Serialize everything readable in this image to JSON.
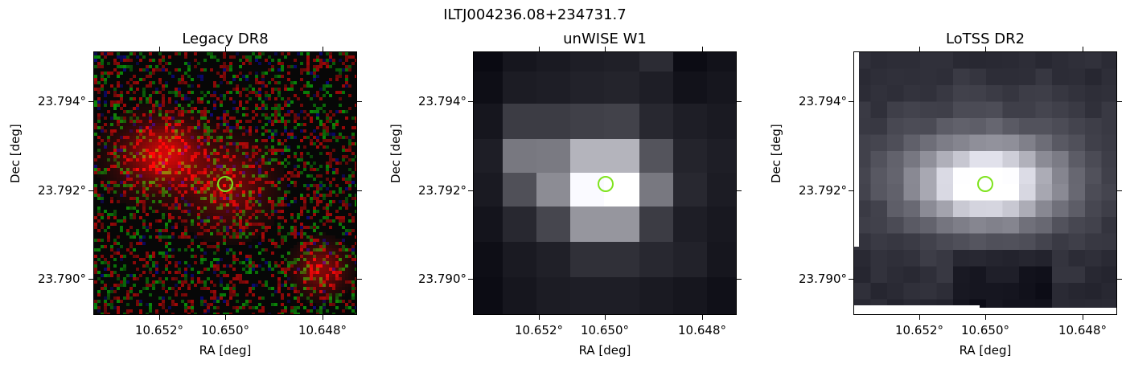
{
  "figure": {
    "title": "ILTJ004236.08+234731.7",
    "panels": [
      {
        "title": "Legacy DR8",
        "xlabel": "RA [deg]",
        "ylabel": "Dec [deg]",
        "xticks": [
          "10.652°",
          "10.650°",
          "10.648°"
        ],
        "yticks": [
          "23.794°",
          "23.792°",
          "23.790°"
        ]
      },
      {
        "title": "unWISE W1",
        "xlabel": "RA [deg]",
        "ylabel": "Dec [deg]",
        "xticks": [
          "10.652°",
          "10.650°",
          "10.648°"
        ],
        "yticks": [
          "23.794°",
          "23.792°",
          "23.790°"
        ]
      },
      {
        "title": "LoTSS DR2",
        "xlabel": "RA [deg]",
        "ylabel": "Dec [deg]",
        "xticks": [
          "10.652°",
          "10.650°",
          "10.648°"
        ],
        "yticks": [
          "23.794°",
          "23.792°",
          "23.790°"
        ]
      }
    ],
    "marker_color": "#7fe31e"
  }
}
